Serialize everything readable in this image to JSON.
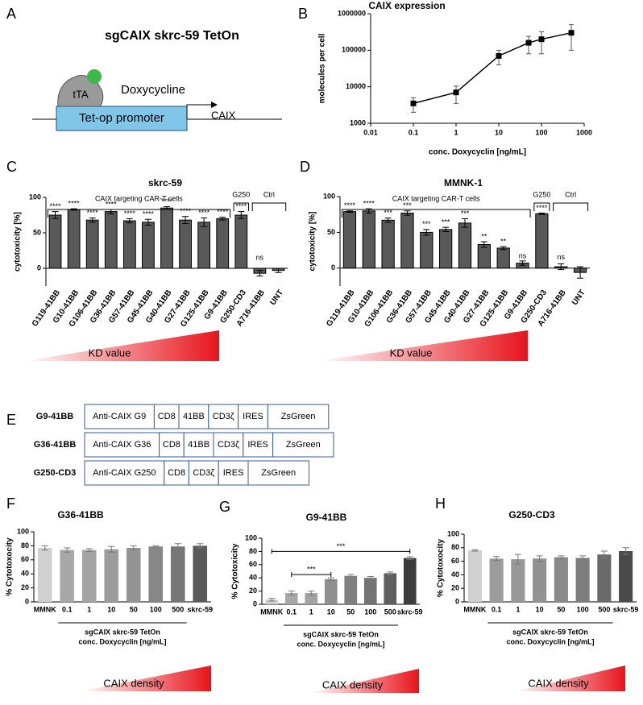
{
  "panel_a": {
    "panel": "A",
    "title": "sgCAIX skrc-59 TetOn",
    "activator": "tTA",
    "inducer": "Doxycycline",
    "promoter": "Tet-op promoter",
    "gene": "CAIX"
  },
  "panel_e": {
    "panel": "E",
    "constructs": [
      {
        "name": "G9-41BB",
        "color": "#d6168c",
        "parts": [
          "Anti-CAIX G9",
          "CD8",
          "41BB",
          "CD3ζ",
          "IRES",
          "ZsGreen"
        ]
      },
      {
        "name": "G36-41BB",
        "color": "#e8702c",
        "parts": [
          "Anti-CAIX G36",
          "CD8",
          "41BB",
          "CD3ζ",
          "IRES",
          "ZsGreen"
        ]
      },
      {
        "name": "G250-CD3",
        "color": "#1ea34a",
        "parts": [
          "Anti-CAIX G250",
          "CD8",
          "CD3ζ",
          "IRES",
          "ZsGreen"
        ]
      }
    ]
  },
  "chart_data": [
    {
      "panel": "B",
      "type": "line",
      "title": "CAIX expression",
      "x_label": "conc. Doxycyclin [ng/mL]",
      "y_label": "molecules per cell",
      "x": [
        0.1,
        1,
        10,
        50,
        100,
        500
      ],
      "values": [
        3500,
        7000,
        70000,
        160000,
        200000,
        300000
      ],
      "errors": [
        1500,
        3500,
        30000,
        80000,
        120000,
        200000
      ],
      "color": "#000000",
      "xscale": "log",
      "yscale": "log",
      "xlim": [
        0.01,
        1000
      ],
      "xticks": [
        0.01,
        0.1,
        1,
        10,
        100,
        1000
      ],
      "ylim": [
        1000,
        1000000
      ],
      "yticks": [
        1000,
        10000,
        100000,
        1000000
      ]
    },
    {
      "panel": "C",
      "type": "bar",
      "title": "skrc-59",
      "y_label": "cytotoxicity [%]",
      "categories": [
        "G119-41BB",
        "G10-41BB",
        "G106-41BB",
        "G36-41BB",
        "G57-41BB",
        "G45-41BB",
        "G40-41BB",
        "G27-41BB",
        "G125-41BB",
        "G9-41BB",
        "G250-CD3",
        "A716-41BB",
        "UNT"
      ],
      "label_colors": [
        "#000000",
        "#000000",
        "#000000",
        "#e8452c",
        "#000000",
        "#000000",
        "#000000",
        "#000000",
        "#000000",
        "#d6168c",
        "#1ea34a",
        "#000000",
        "#000000"
      ],
      "values": [
        75,
        83,
        68,
        80,
        67,
        65,
        85,
        68,
        65,
        70,
        75,
        -7,
        -3
      ],
      "errors": [
        5,
        1,
        3,
        3,
        3,
        4,
        2,
        5,
        6,
        2,
        5,
        4,
        3
      ],
      "significance": [
        "****",
        "****",
        "****",
        "****",
        "****",
        "****",
        "****",
        "****",
        "****",
        "****",
        "****",
        "ns",
        null
      ],
      "groups": [
        "CAIX targeting CAR-T cells",
        "G250",
        "Ctrl"
      ],
      "gradient_label": "KD value",
      "gradient_color": "#e8141c",
      "color": "#595959",
      "ylim": [
        -25,
        100
      ],
      "yticks": [
        0,
        50,
        100
      ]
    },
    {
      "panel": "D",
      "type": "bar",
      "title": "MMNK-1",
      "y_label": "cytotoxicity [%]",
      "categories": [
        "G119-41BB",
        "G10-41BB",
        "G106-41BB",
        "G36-41BB",
        "G57-41BB",
        "G45-41BB",
        "G40-41BB",
        "G27-41BB",
        "G125-41BB",
        "G9-41BB",
        "G250-CD3",
        "A716-41BB",
        "UNT"
      ],
      "label_colors": [
        "#000000",
        "#000000",
        "#000000",
        "#e8452c",
        "#000000",
        "#000000",
        "#000000",
        "#000000",
        "#000000",
        "#d6168c",
        "#1ea34a",
        "#000000",
        "#000000"
      ],
      "values": [
        79,
        80,
        67,
        77,
        50,
        54,
        63,
        33,
        28,
        7,
        76,
        2,
        -6
      ],
      "errors": [
        1,
        3,
        3,
        3,
        4,
        3,
        6,
        4,
        2,
        3,
        1,
        4,
        8
      ],
      "significance": [
        "****",
        "****",
        "***",
        "***",
        "***",
        "***",
        "***",
        "**",
        "**",
        "ns",
        "****",
        "ns",
        null
      ],
      "groups": [
        "CAIX targeting CAR-T cells",
        "G250",
        "Ctrl"
      ],
      "gradient_label": "KD value",
      "gradient_color": "#e8141c",
      "color": "#595959",
      "ylim": [
        -25,
        100
      ],
      "yticks": [
        0,
        50,
        100
      ]
    },
    {
      "panel": "F",
      "type": "bar",
      "title": "G36-41BB",
      "title_color": "#d6168c",
      "y_label": "% Cytotoxocity",
      "categories": [
        "MMNK",
        "0.1",
        "1",
        "10",
        "50",
        "100",
        "500",
        "skrc-59"
      ],
      "values": [
        77,
        74,
        74,
        75,
        77,
        79,
        79,
        80
      ],
      "errors": [
        3,
        3,
        2,
        4,
        3,
        1,
        4,
        3
      ],
      "colors": [
        "#d0d0d0",
        "#a8a8a8",
        "#a4a4a4",
        "#9c9c9c",
        "#939393",
        "#878787",
        "#777777",
        "#5a5a5a"
      ],
      "group_label": "sgCAIX skrc-59 TetOn",
      "group_sublabel": "conc. Doxycyclin [ng/mL]",
      "gradient_label": "CAIX density",
      "gradient_color": "#e8141c",
      "ylim": [
        0,
        100
      ],
      "yticks": [
        0,
        20,
        40,
        60,
        80,
        100
      ]
    },
    {
      "panel": "G",
      "type": "bar",
      "title": "G9-41BB",
      "title_color": "#e8452c",
      "y_label": "% Cytotoxicity",
      "categories": [
        "MMNK",
        "0.1",
        "1",
        "10",
        "50",
        "100",
        "500",
        "skrc-59"
      ],
      "values": [
        7,
        17,
        17,
        38,
        43,
        40,
        47,
        70
      ],
      "errors": [
        2,
        3,
        3,
        2,
        2,
        2,
        2,
        2
      ],
      "colors": [
        "#cfcfcf",
        "#a8a8a8",
        "#a3a3a3",
        "#8f8f8f",
        "#808080",
        "#737373",
        "#5f5f5f",
        "#3c3c3c"
      ],
      "brackets": [
        "***",
        "***"
      ],
      "group_label": "sgCAIX skrc-59 TetOn",
      "group_sublabel": "conc. Doxycyclin [ng/mL]",
      "gradient_label": "CAIX density",
      "gradient_color": "#e8141c",
      "ylim": [
        0,
        100
      ],
      "yticks": [
        0,
        20,
        40,
        60,
        80,
        100
      ]
    },
    {
      "panel": "H",
      "type": "bar",
      "title": "G250-CD3",
      "title_color": "#1ea34a",
      "y_label": "% Cytotoxocity",
      "categories": [
        "MMNK",
        "0.1",
        "1",
        "10",
        "50",
        "100",
        "500",
        "skrc-59"
      ],
      "values": [
        76,
        64,
        63,
        64,
        66,
        65,
        70,
        75
      ],
      "errors": [
        1,
        3,
        7,
        4,
        2,
        3,
        5,
        5
      ],
      "colors": [
        "#d0d0d0",
        "#9c9c9c",
        "#989898",
        "#929292",
        "#8a8a8a",
        "#7e7e7e",
        "#6a6a6a",
        "#4a4a4a"
      ],
      "group_label": "sgCAIX skrc-59 TetOn",
      "group_sublabel": "conc. Doxycyclin [ng/mL]",
      "gradient_label": "CAIX density",
      "gradient_color": "#e8141c",
      "ylim": [
        0,
        100
      ],
      "yticks": [
        0,
        20,
        40,
        60,
        80,
        100
      ]
    }
  ]
}
